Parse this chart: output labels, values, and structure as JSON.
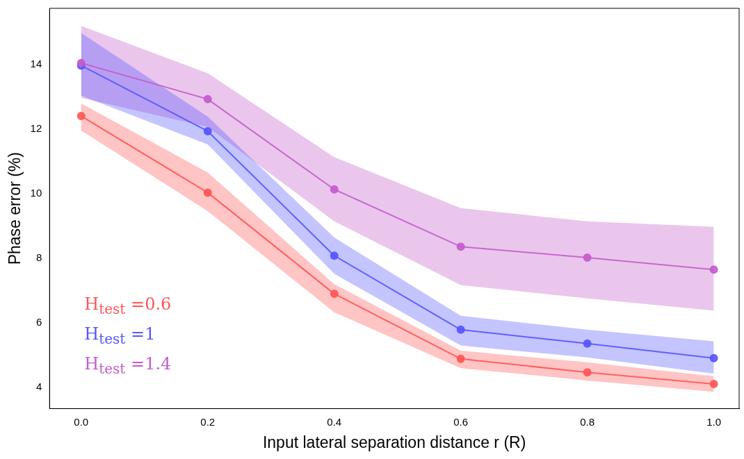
{
  "chart_data": {
    "type": "line",
    "xlabel": "Input lateral separation distance r (R)",
    "ylabel": "Phase error (%)",
    "x": [
      0,
      0.2,
      0.4,
      0.6,
      0.8,
      1.0
    ],
    "series": [
      {
        "name": "H$_{test}$ =0.6",
        "color": "#ff5555",
        "values": [
          12.4,
          10.03,
          6.9,
          4.89,
          4.47,
          4.11
        ],
        "lower": [
          11.95,
          9.46,
          6.33,
          4.6,
          4.22,
          3.87
        ],
        "upper": [
          12.79,
          10.65,
          7.2,
          5.14,
          4.78,
          4.35
        ]
      },
      {
        "name": "H$_{test}$ =1",
        "color": "#5555ff",
        "values": [
          13.96,
          11.93,
          8.08,
          5.79,
          5.36,
          4.91
        ],
        "lower": [
          13.03,
          11.52,
          7.52,
          5.3,
          4.93,
          4.43
        ],
        "upper": [
          14.97,
          12.38,
          8.64,
          6.22,
          5.79,
          5.43
        ]
      },
      {
        "name": "H$_{test}$ =1.4",
        "color": "#c45ccc",
        "values": [
          14.04,
          12.92,
          10.13,
          8.36,
          8.02,
          7.65
        ],
        "lower": [
          12.96,
          12.06,
          9.14,
          7.17,
          6.76,
          6.38
        ],
        "upper": [
          15.19,
          13.72,
          11.13,
          9.55,
          9.14,
          8.97
        ]
      }
    ],
    "xlim": [
      -0.05,
      1.04
    ],
    "xticks": [
      {
        "value": 0,
        "label": "0.0"
      },
      {
        "value": 0.2,
        "label": "0.2"
      },
      {
        "value": 0.4,
        "label": "0.4"
      },
      {
        "value": 0.6,
        "label": "0.6"
      },
      {
        "value": 0.8,
        "label": "0.8"
      },
      {
        "value": 1.0,
        "label": "1.0"
      }
    ],
    "ylim": [
      3.35,
      15.73
    ],
    "yticks": [
      4,
      6,
      8,
      10,
      12,
      14
    ],
    "grid": false,
    "legend": "bottom left",
    "marker": "circle",
    "line_style": "solid"
  }
}
